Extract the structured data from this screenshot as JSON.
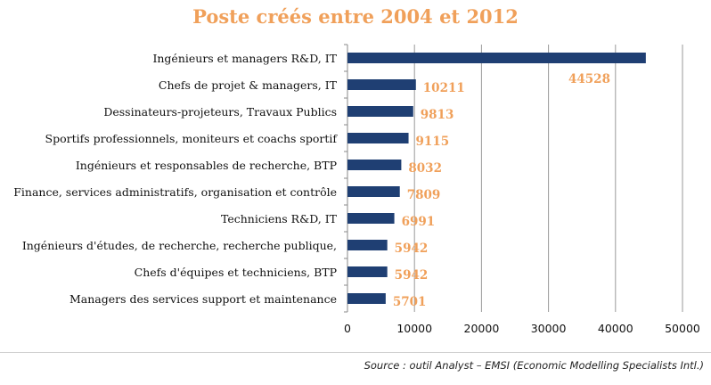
{
  "chart_data": {
    "type": "bar",
    "orientation": "horizontal",
    "title": "Poste créés entre 2004 et 2012",
    "categories": [
      "Ingénieurs et managers R&D, IT",
      "Chefs de projet & managers, IT",
      "Dessinateurs-projeteurs, Travaux Publics",
      "Sportifs professionnels, moniteurs et coachs sportif",
      "Ingénieurs et responsables de recherche, BTP",
      "Finance, services administratifs, organisation et contrôle",
      "Techniciens R&D, IT",
      "Ingénieurs d'études, de recherche, recherche publique,",
      "Chefs d'équipes et techniciens, BTP",
      "Managers des services support et maintenance"
    ],
    "values": [
      44528,
      10211,
      9813,
      9115,
      8032,
      7809,
      6991,
      5942,
      5942,
      5701
    ],
    "data_labels": [
      "44528",
      "10211",
      "9813",
      "9115",
      "8032",
      "7809",
      "6991",
      "5942",
      "5942",
      "5701"
    ],
    "xlim": [
      0,
      50000
    ],
    "x_ticks": [
      "0",
      "10000",
      "20000",
      "30000",
      "40000",
      "50000"
    ],
    "grid": "vertical",
    "bar_color": "#1f3f73",
    "label_color": "#f0a05a",
    "source": "Source : outil Analyst – EMSI (Economic Modelling Specialists Intl.)"
  }
}
